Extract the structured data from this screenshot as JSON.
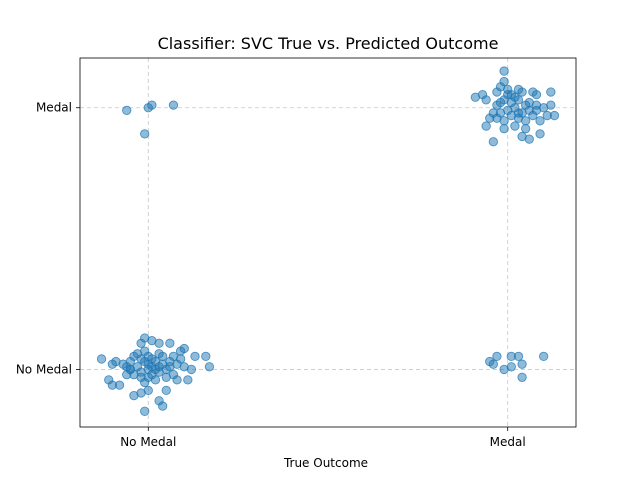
{
  "chart_data": {
    "type": "scatter",
    "title": "Classifier: SVC True vs. Predicted Outcome",
    "xlabel": "True Outcome",
    "ylabel": "",
    "x_ticks": [
      {
        "value": 0,
        "label": "No Medal"
      },
      {
        "value": 1,
        "label": "Medal"
      }
    ],
    "y_ticks": [
      {
        "value": 0,
        "label": "No Medal"
      },
      {
        "value": 1,
        "label": "Medal"
      }
    ],
    "xlim": [
      -0.19,
      1.19
    ],
    "ylim": [
      -0.22,
      1.19
    ],
    "grid": true,
    "point_color": "#1f77b4",
    "point_alpha": 0.5,
    "series": [
      {
        "points": [
          [
            -0.13,
            0.04
          ],
          [
            -0.1,
            0.02
          ],
          [
            -0.09,
            0.03
          ],
          [
            -0.11,
            -0.04
          ],
          [
            -0.1,
            -0.06
          ],
          [
            -0.08,
            -0.06
          ],
          [
            -0.07,
            0.02
          ],
          [
            -0.06,
            0.01
          ],
          [
            -0.05,
            0.0
          ],
          [
            -0.05,
            0.03
          ],
          [
            -0.04,
            0.05
          ],
          [
            -0.04,
            -0.02
          ],
          [
            -0.03,
            0.06
          ],
          [
            -0.03,
            0.01
          ],
          [
            -0.02,
            0.04
          ],
          [
            -0.02,
            -0.01
          ],
          [
            -0.02,
            -0.03
          ],
          [
            -0.01,
            0.03
          ],
          [
            -0.01,
            0.07
          ],
          [
            -0.01,
            -0.05
          ],
          [
            0.0,
            0.0
          ],
          [
            0.0,
            0.02
          ],
          [
            0.0,
            0.05
          ],
          [
            0.01,
            0.01
          ],
          [
            0.01,
            -0.02
          ],
          [
            0.01,
            0.04
          ],
          [
            0.02,
            0.0
          ],
          [
            0.02,
            0.03
          ],
          [
            0.02,
            -0.04
          ],
          [
            0.03,
            0.06
          ],
          [
            0.03,
            0.01
          ],
          [
            0.03,
            -0.01
          ],
          [
            0.04,
            0.02
          ],
          [
            0.04,
            0.05
          ],
          [
            0.05,
            0.0
          ],
          [
            0.05,
            -0.03
          ],
          [
            0.06,
            0.03
          ],
          [
            0.06,
            0.01
          ],
          [
            0.07,
            -0.02
          ],
          [
            0.08,
            0.02
          ],
          [
            0.09,
            0.04
          ],
          [
            0.1,
            0.01
          ],
          [
            0.11,
            -0.04
          ],
          [
            0.12,
            0.0
          ],
          [
            0.09,
            0.07
          ],
          [
            -0.02,
            0.1
          ],
          [
            -0.01,
            0.12
          ],
          [
            0.01,
            0.11
          ],
          [
            0.03,
            0.1
          ],
          [
            0.06,
            0.1
          ],
          [
            0.1,
            0.08
          ],
          [
            0.13,
            0.05
          ],
          [
            0.16,
            0.05
          ],
          [
            0.17,
            0.01
          ],
          [
            -0.04,
            -0.1
          ],
          [
            -0.02,
            -0.09
          ],
          [
            0.0,
            -0.08
          ],
          [
            0.03,
            -0.12
          ],
          [
            0.05,
            -0.08
          ],
          [
            0.04,
            -0.14
          ],
          [
            -0.01,
            -0.16
          ],
          [
            -0.05,
            0.0
          ],
          [
            -0.06,
            -0.02
          ],
          [
            0.07,
            0.05
          ],
          [
            0.08,
            -0.04
          ],
          [
            0.0,
            -0.03
          ]
        ]
      },
      {
        "points": [
          [
            -0.06,
            0.99
          ],
          [
            -0.01,
            0.9
          ],
          [
            0.0,
            1.0
          ],
          [
            0.01,
            1.01
          ],
          [
            0.07,
            1.01
          ]
        ]
      },
      {
        "points": [
          [
            0.95,
            0.03
          ],
          [
            0.96,
            0.02
          ],
          [
            0.97,
            0.05
          ],
          [
            0.99,
            0.0
          ],
          [
            1.01,
            0.05
          ],
          [
            1.01,
            0.01
          ],
          [
            1.03,
            0.05
          ],
          [
            1.04,
            -0.03
          ],
          [
            1.04,
            0.02
          ],
          [
            1.1,
            0.05
          ]
        ]
      },
      {
        "points": [
          [
            0.91,
            1.04
          ],
          [
            0.93,
            1.05
          ],
          [
            0.94,
            1.03
          ],
          [
            0.94,
            0.93
          ],
          [
            0.95,
            0.96
          ],
          [
            0.96,
            0.98
          ],
          [
            0.96,
            0.87
          ],
          [
            0.97,
            1.01
          ],
          [
            0.97,
            1.06
          ],
          [
            0.98,
            1.02
          ],
          [
            0.98,
            1.08
          ],
          [
            0.99,
            1.14
          ],
          [
            0.99,
            1.1
          ],
          [
            0.99,
            1.03
          ],
          [
            0.99,
            0.95
          ],
          [
            0.99,
            0.92
          ],
          [
            1.0,
            0.99
          ],
          [
            1.0,
            1.07
          ],
          [
            1.01,
            1.02
          ],
          [
            1.01,
            0.97
          ],
          [
            1.01,
            1.05
          ],
          [
            1.02,
            1.0
          ],
          [
            1.02,
            0.93
          ],
          [
            1.03,
            1.03
          ],
          [
            1.03,
            1.07
          ],
          [
            1.04,
            0.98
          ],
          [
            1.04,
            1.06
          ],
          [
            1.03,
            0.96
          ],
          [
            1.05,
            1.01
          ],
          [
            1.05,
            0.92
          ],
          [
            1.06,
            1.02
          ],
          [
            1.06,
            0.99
          ],
          [
            1.07,
            1.06
          ],
          [
            1.07,
            0.97
          ],
          [
            1.08,
            0.99
          ],
          [
            1.08,
            1.05
          ],
          [
            1.08,
            1.01
          ],
          [
            1.09,
            0.95
          ],
          [
            1.09,
            0.9
          ],
          [
            1.1,
            1.0
          ],
          [
            1.11,
            0.97
          ],
          [
            1.12,
            1.01
          ],
          [
            1.12,
            1.06
          ],
          [
            1.13,
            0.97
          ],
          [
            1.04,
            0.89
          ],
          [
            1.06,
            0.88
          ],
          [
            0.98,
            0.98
          ],
          [
            1.02,
            1.04
          ],
          [
            1.0,
            1.05
          ],
          [
            0.97,
            0.96
          ],
          [
            1.03,
            0.98
          ],
          [
            1.05,
            0.95
          ]
        ]
      }
    ]
  }
}
